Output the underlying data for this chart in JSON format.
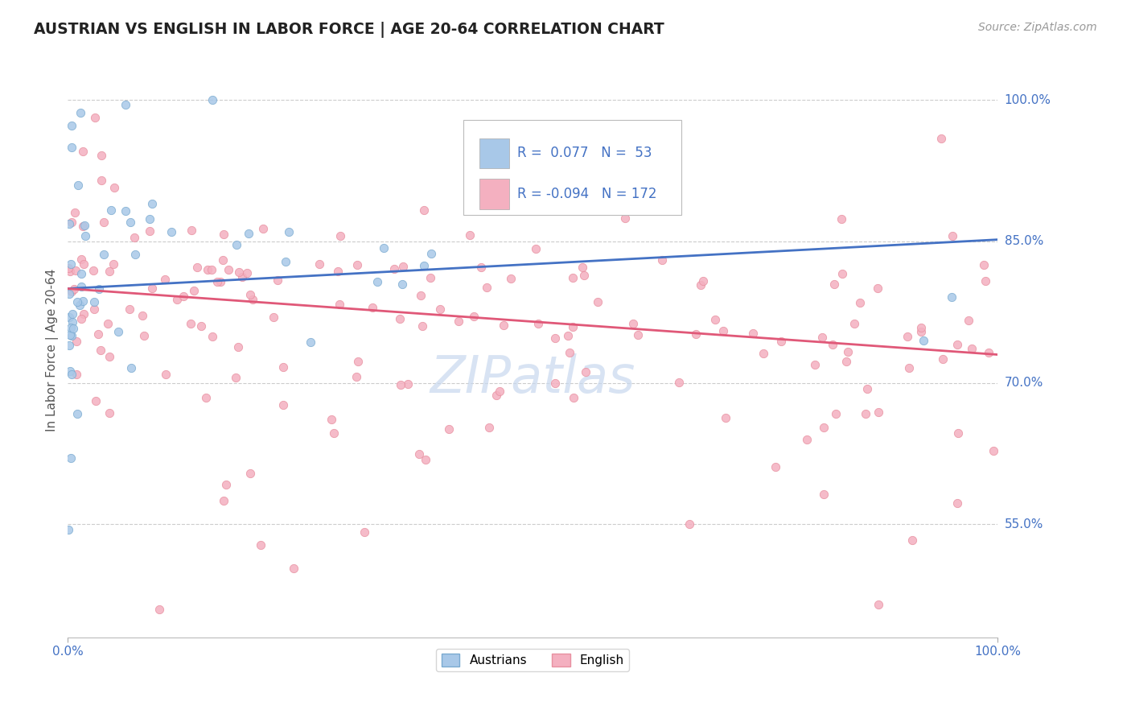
{
  "title": "AUSTRIAN VS ENGLISH IN LABOR FORCE | AGE 20-64 CORRELATION CHART",
  "source": "Source: ZipAtlas.com",
  "ylabel": "In Labor Force | Age 20-64",
  "xlim": [
    0.0,
    1.0
  ],
  "ylim": [
    0.43,
    1.04
  ],
  "yticks": [
    0.55,
    0.7,
    0.85,
    1.0
  ],
  "ytick_labels": [
    "55.0%",
    "70.0%",
    "85.0%",
    "100.0%"
  ],
  "legend_r_austrians": "0.077",
  "legend_n_austrians": "53",
  "legend_r_english": "-0.094",
  "legend_n_english": "172",
  "color_austrians_fill": "#A8C8E8",
  "color_austrians_edge": "#7AAAD0",
  "color_english_fill": "#F4B0C0",
  "color_english_edge": "#E890A0",
  "color_line_austrians": "#4472C4",
  "color_line_english": "#E05878",
  "color_axis_blue": "#4472C4",
  "color_source": "#999999",
  "color_grid": "#CCCCCC",
  "color_watermark": "#C8D8EE",
  "aus_line_start_y": 0.8,
  "aus_line_end_y": 0.852,
  "eng_line_start_y": 0.8,
  "eng_line_end_y": 0.73
}
